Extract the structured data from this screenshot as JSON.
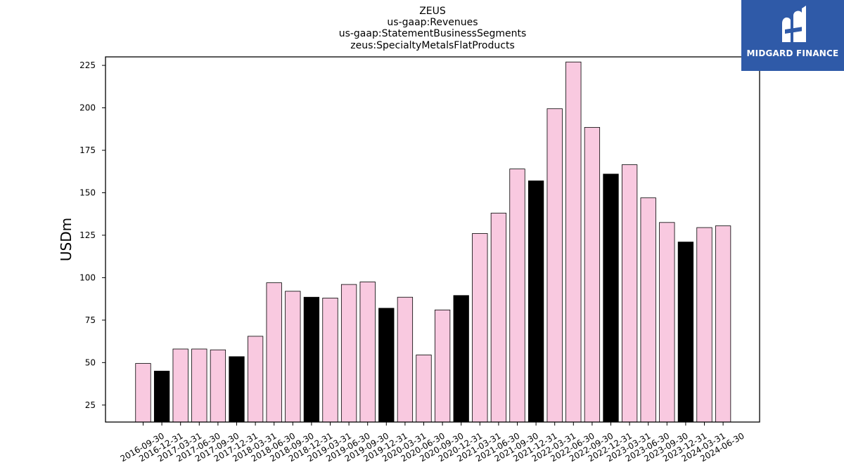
{
  "chart_data": {
    "type": "bar",
    "title_lines": [
      "ZEUS",
      "us-gaap:Revenues",
      "us-gaap:StatementBusinessSegments",
      "zeus:SpecialtyMetalsFlatProducts"
    ],
    "ylabel": "USDm",
    "xlabel": "",
    "ylim": [
      15,
      230
    ],
    "yticks": [
      25,
      50,
      75,
      100,
      125,
      150,
      175,
      200,
      225
    ],
    "categories": [
      "2016-09-30",
      "2016-12-31",
      "2017-03-31",
      "2017-06-30",
      "2017-09-30",
      "2017-12-31",
      "2018-03-31",
      "2018-06-30",
      "2018-09-30",
      "2018-12-31",
      "2019-03-31",
      "2019-06-30",
      "2019-09-30",
      "2019-12-31",
      "2020-03-31",
      "2020-06-30",
      "2020-09-30",
      "2020-12-31",
      "2021-03-31",
      "2021-06-30",
      "2021-09-30",
      "2021-12-31",
      "2022-03-31",
      "2022-06-30",
      "2022-09-30",
      "2022-12-31",
      "2023-03-31",
      "2023-06-30",
      "2023-09-30",
      "2023-12-31",
      "2024-03-31",
      "2024-06-30"
    ],
    "values": [
      49.5,
      45,
      58,
      58,
      57.5,
      53.5,
      65.5,
      97,
      92,
      88.5,
      88,
      96,
      97.5,
      82,
      88.5,
      54.5,
      81,
      89.5,
      126,
      138,
      164,
      157,
      199.5,
      227,
      188.5,
      161,
      166.5,
      147,
      132.5,
      121,
      129.5,
      130.5
    ],
    "highlight": [
      false,
      true,
      false,
      false,
      false,
      true,
      false,
      false,
      false,
      true,
      false,
      false,
      false,
      true,
      false,
      false,
      false,
      true,
      false,
      false,
      false,
      true,
      false,
      false,
      false,
      true,
      false,
      false,
      false,
      true,
      false,
      false
    ],
    "colors": {
      "normal": "#f9c9e0",
      "highlight": "#000000",
      "edge": "#000000"
    },
    "grid": false,
    "legend": "none"
  },
  "logo": {
    "text": "MIDGARD FINANCE",
    "background": "#2f5aa8"
  }
}
